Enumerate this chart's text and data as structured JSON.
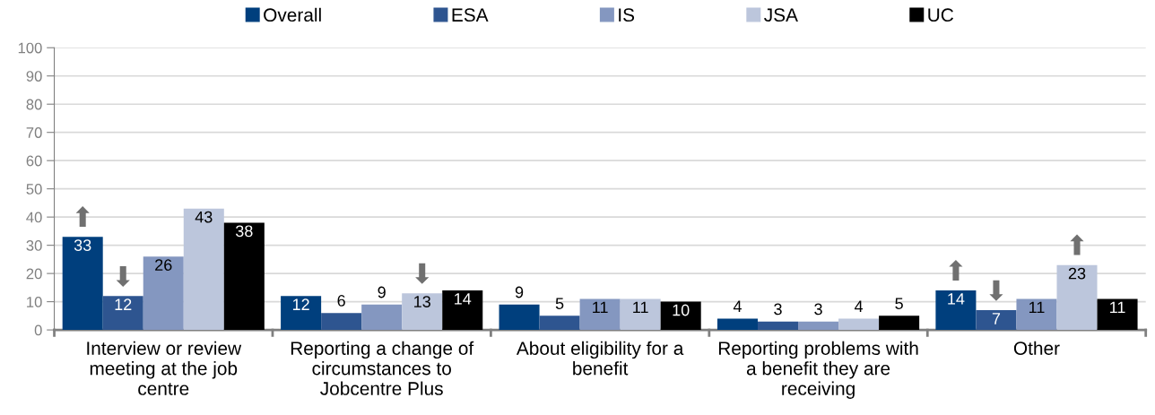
{
  "chart_data": {
    "type": "bar",
    "categories": [
      "Interview or review meeting at the job centre",
      "Reporting a change of circumstances to Jobcentre Plus",
      "About eligibility for a benefit",
      "Reporting problems with a benefit they are receiving",
      "Other"
    ],
    "series": [
      {
        "name": "Overall",
        "color": "#003f7d",
        "values": [
          33,
          12,
          9,
          4,
          14
        ],
        "value_labels": [
          "33\n⬆",
          "12",
          "9",
          "4",
          "14\n⬆"
        ]
      },
      {
        "name": "ESA",
        "color": "#2e5590",
        "values": [
          12,
          6,
          5,
          3,
          7
        ],
        "value_labels": [
          "12\n⬇",
          "6",
          "5",
          "3",
          "7\n⬇"
        ]
      },
      {
        "name": "IS",
        "color": "#8497c0",
        "values": [
          26,
          9,
          11,
          3,
          11
        ],
        "value_labels": [
          "26",
          "9",
          "11",
          "3",
          "11"
        ]
      },
      {
        "name": "JSA",
        "color": "#bcc6dc",
        "values": [
          43,
          13,
          11,
          4,
          23
        ],
        "value_labels": [
          "43",
          "13\n⬇",
          "11",
          "4",
          "23\n⬆"
        ]
      },
      {
        "name": "UC",
        "color": "#000000",
        "values": [
          38,
          14,
          10,
          5,
          11
        ],
        "value_labels": [
          "38",
          "14",
          "10",
          "5",
          "11"
        ]
      }
    ],
    "ylim": [
      0,
      100
    ],
    "yticks": [
      0,
      10,
      20,
      30,
      40,
      50,
      60,
      70,
      80,
      90,
      100
    ],
    "grid": "y",
    "legend": "top"
  }
}
